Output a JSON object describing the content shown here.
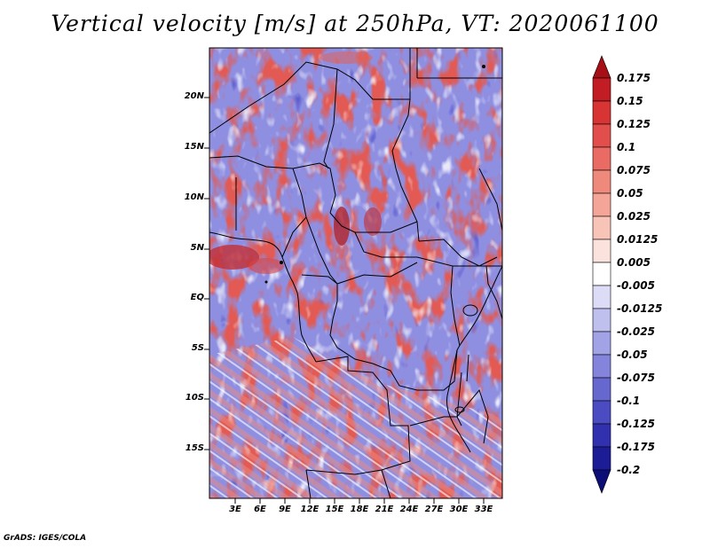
{
  "title": "Vertical velocity [m/s] at 250hPa, VT: 2020061100",
  "map": {
    "latitude_labels": [
      "20N",
      "15N",
      "10N",
      "5N",
      "EQ",
      "5S",
      "10S",
      "15S"
    ],
    "longitude_labels": [
      "3E",
      "6E",
      "9E",
      "12E",
      "15E",
      "18E",
      "21E",
      "24E",
      "27E",
      "30E",
      "33E"
    ],
    "variable": "vertical velocity",
    "level": "250hPa",
    "valid_time": "2020061100"
  },
  "colorbar": {
    "levels": [
      "0.175",
      "0.15",
      "0.125",
      "0.1",
      "0.075",
      "0.05",
      "0.025",
      "0.0125",
      "0.005",
      "-0.005",
      "-0.0125",
      "-0.025",
      "-0.05",
      "-0.075",
      "-0.1",
      "-0.125",
      "-0.175",
      "-0.2"
    ],
    "colors": [
      "#a50f15",
      "#c21d24",
      "#d83434",
      "#e24e4b",
      "#e96b63",
      "#ef897c",
      "#f4a597",
      "#f8c4b8",
      "#fbe2dc",
      "#ffffff",
      "#dcdcf6",
      "#c0c0ef",
      "#a2a2e6",
      "#8484dc",
      "#6767d0",
      "#4b4bc2",
      "#3131b0",
      "#1c1c96",
      "#0d0d78"
    ]
  },
  "credit": "GrADS: IGES/COLA"
}
